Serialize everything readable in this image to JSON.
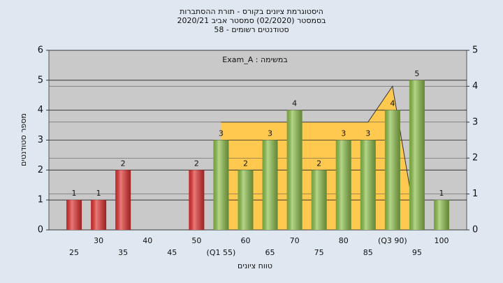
{
  "chart_data": {
    "type": "bar",
    "title": "היסטוגרמת ציונים בקורס - תורת ההסתברות",
    "subtitle": "בסמסטר  (02/2020)  סמסטר אביב 2020/21",
    "subtitle2": "סטודנטים רשומים - 58",
    "annotation": "במשימה : Exam_A",
    "x_label": "טווח ציונים",
    "y_label": "מספר סטודנטים",
    "categories": [
      "25",
      "30",
      "35",
      "40",
      "45",
      "50",
      "(Q1 55)",
      "60",
      "65",
      "70",
      "75",
      "80",
      "85",
      "(Q3 90)",
      "95",
      "100"
    ],
    "values": [
      1,
      1,
      2,
      0,
      0,
      2,
      3,
      2,
      3,
      4,
      2,
      3,
      3,
      4,
      5,
      1
    ],
    "colors": [
      "#e23030",
      "#e23030",
      "#e23030",
      "#e23030",
      "#e23030",
      "#e23030",
      "#8cc04a",
      "#8cc04a",
      "#8cc04a",
      "#8cc04a",
      "#8cc04a",
      "#8cc04a",
      "#8cc04a",
      "#8cc04a",
      "#8cc04a",
      "#8cc04a"
    ],
    "ylim": [
      0,
      6
    ],
    "yticks": [
      0,
      1,
      2,
      3,
      4,
      5,
      6
    ],
    "y2lim": [
      0,
      5
    ],
    "y2ticks": [
      0,
      1,
      2,
      3,
      4,
      5
    ],
    "area": {
      "axis": "y2",
      "color": "#ffc94f",
      "values": [
        null,
        null,
        null,
        null,
        null,
        null,
        3,
        3,
        3,
        3,
        3,
        3,
        3,
        4,
        0,
        null
      ]
    },
    "grid": true
  }
}
